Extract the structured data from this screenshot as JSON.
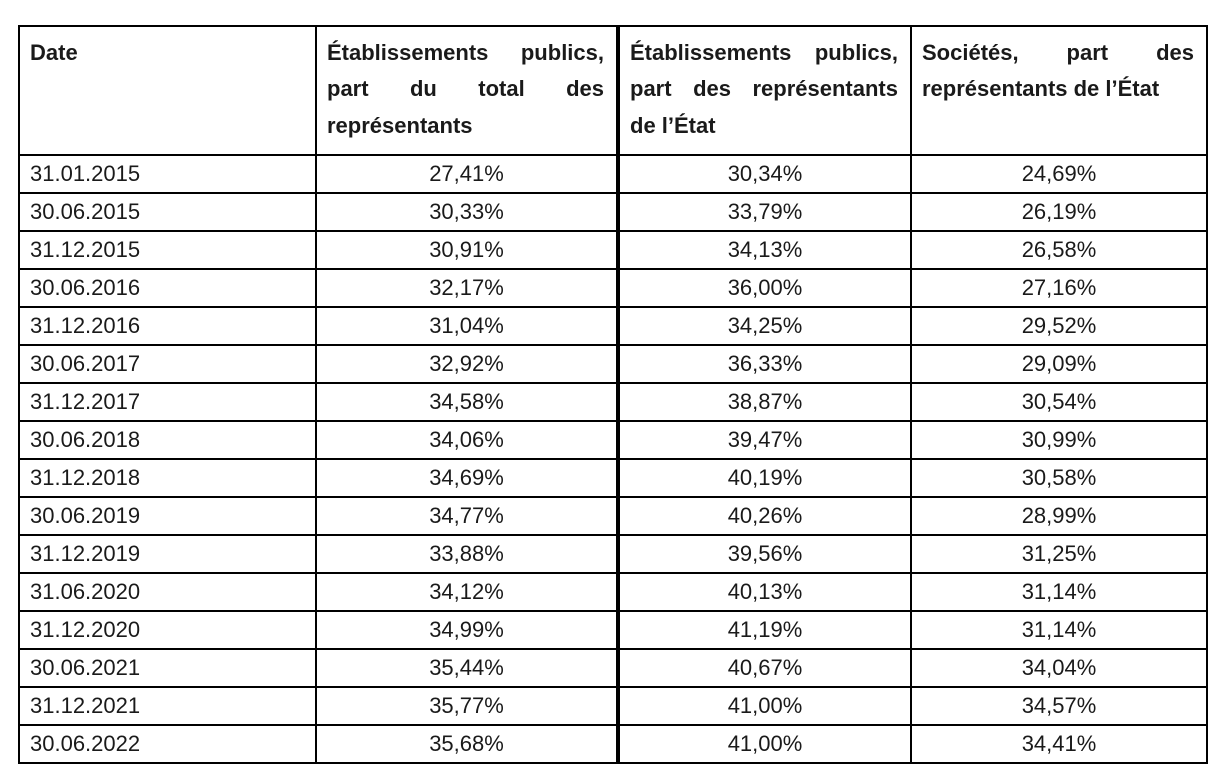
{
  "table": {
    "headers": [
      "Date",
      "Établissements publics, part du total des représentants",
      "Établissements publics, part des représentants de l’État",
      "Sociétés, part des représentants de l’État"
    ],
    "rows": [
      {
        "date": "31.01.2015",
        "values": [
          "27,41%",
          "30,34%",
          "24,69%"
        ]
      },
      {
        "date": "30.06.2015",
        "values": [
          "30,33%",
          "33,79%",
          "26,19%"
        ]
      },
      {
        "date": "31.12.2015",
        "values": [
          "30,91%",
          "34,13%",
          "26,58%"
        ]
      },
      {
        "date": "30.06.2016",
        "values": [
          "32,17%",
          "36,00%",
          "27,16%"
        ]
      },
      {
        "date": "31.12.2016",
        "values": [
          "31,04%",
          "34,25%",
          "29,52%"
        ]
      },
      {
        "date": "30.06.2017",
        "values": [
          "32,92%",
          "36,33%",
          "29,09%"
        ]
      },
      {
        "date": "31.12.2017",
        "values": [
          "34,58%",
          "38,87%",
          "30,54%"
        ]
      },
      {
        "date": "30.06.2018",
        "values": [
          "34,06%",
          "39,47%",
          "30,99%"
        ]
      },
      {
        "date": "31.12.2018",
        "values": [
          "34,69%",
          "40,19%",
          "30,58%"
        ]
      },
      {
        "date": "30.06.2019",
        "values": [
          "34,77%",
          "40,26%",
          "28,99%"
        ]
      },
      {
        "date": "31.12.2019",
        "values": [
          "33,88%",
          "39,56%",
          "31,25%"
        ]
      },
      {
        "date": "31.06.2020",
        "values": [
          "34,12%",
          "40,13%",
          "31,14%"
        ]
      },
      {
        "date": "31.12.2020",
        "values": [
          "34,99%",
          "41,19%",
          "31,14%"
        ]
      },
      {
        "date": "30.06.2021",
        "values": [
          "35,44%",
          "40,67%",
          "34,04%"
        ]
      },
      {
        "date": "31.12.2021",
        "values": [
          "35,77%",
          "41,00%",
          "34,57%"
        ]
      },
      {
        "date": "30.06.2022",
        "values": [
          "35,68%",
          "41,00%",
          "34,41%"
        ]
      }
    ]
  },
  "colors": {
    "border": "#000000",
    "text": "#1a1a1a",
    "background": "#ffffff"
  }
}
